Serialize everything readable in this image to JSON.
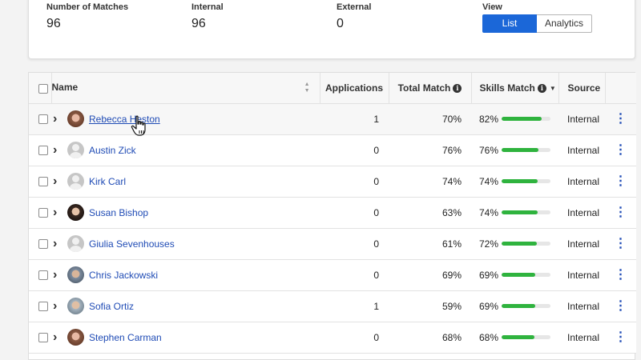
{
  "stats": {
    "matches": {
      "label": "Number of Matches",
      "value": "96"
    },
    "internal": {
      "label": "Internal",
      "value": "96"
    },
    "external": {
      "label": "External",
      "value": "0"
    },
    "view": {
      "label": "View",
      "options": [
        "List",
        "Analytics"
      ],
      "selected": "List"
    }
  },
  "table": {
    "headers": {
      "name": "Name",
      "applications": "Applications",
      "total_match": "Total Match",
      "skills_match": "Skills Match",
      "source": "Source"
    },
    "rows": [
      {
        "name": "Rebecca Heston",
        "applications": "1",
        "total_match": "70%",
        "skills_match": "82%",
        "skills_fraction": 0.82,
        "source": "Internal",
        "avatar": "photo"
      },
      {
        "name": "Austin Zick",
        "applications": "0",
        "total_match": "76%",
        "skills_match": "76%",
        "skills_fraction": 0.76,
        "source": "Internal",
        "avatar": "placeholder"
      },
      {
        "name": "Kirk Carl",
        "applications": "0",
        "total_match": "74%",
        "skills_match": "74%",
        "skills_fraction": 0.74,
        "source": "Internal",
        "avatar": "placeholder"
      },
      {
        "name": "Susan Bishop",
        "applications": "0",
        "total_match": "63%",
        "skills_match": "74%",
        "skills_fraction": 0.74,
        "source": "Internal",
        "avatar": "photo"
      },
      {
        "name": "Giulia Sevenhouses",
        "applications": "0",
        "total_match": "61%",
        "skills_match": "72%",
        "skills_fraction": 0.72,
        "source": "Internal",
        "avatar": "placeholder"
      },
      {
        "name": "Chris Jackowski",
        "applications": "0",
        "total_match": "69%",
        "skills_match": "69%",
        "skills_fraction": 0.69,
        "source": "Internal",
        "avatar": "photo"
      },
      {
        "name": "Sofia Ortiz",
        "applications": "1",
        "total_match": "59%",
        "skills_match": "69%",
        "skills_fraction": 0.69,
        "source": "Internal",
        "avatar": "photo"
      },
      {
        "name": "Stephen Carman",
        "applications": "0",
        "total_match": "68%",
        "skills_match": "68%",
        "skills_fraction": 0.68,
        "source": "Internal",
        "avatar": "photo"
      }
    ]
  },
  "colors": {
    "accent": "#1b67d8",
    "link": "#1f4bb5",
    "bar_fill": "#2fb33e",
    "bar_track": "#e6e6e6"
  },
  "icons": {
    "row_expand": "chevron-right-icon",
    "row_menu": "kebab-menu-icon",
    "info": "info-icon",
    "sort": "sort-icon"
  }
}
